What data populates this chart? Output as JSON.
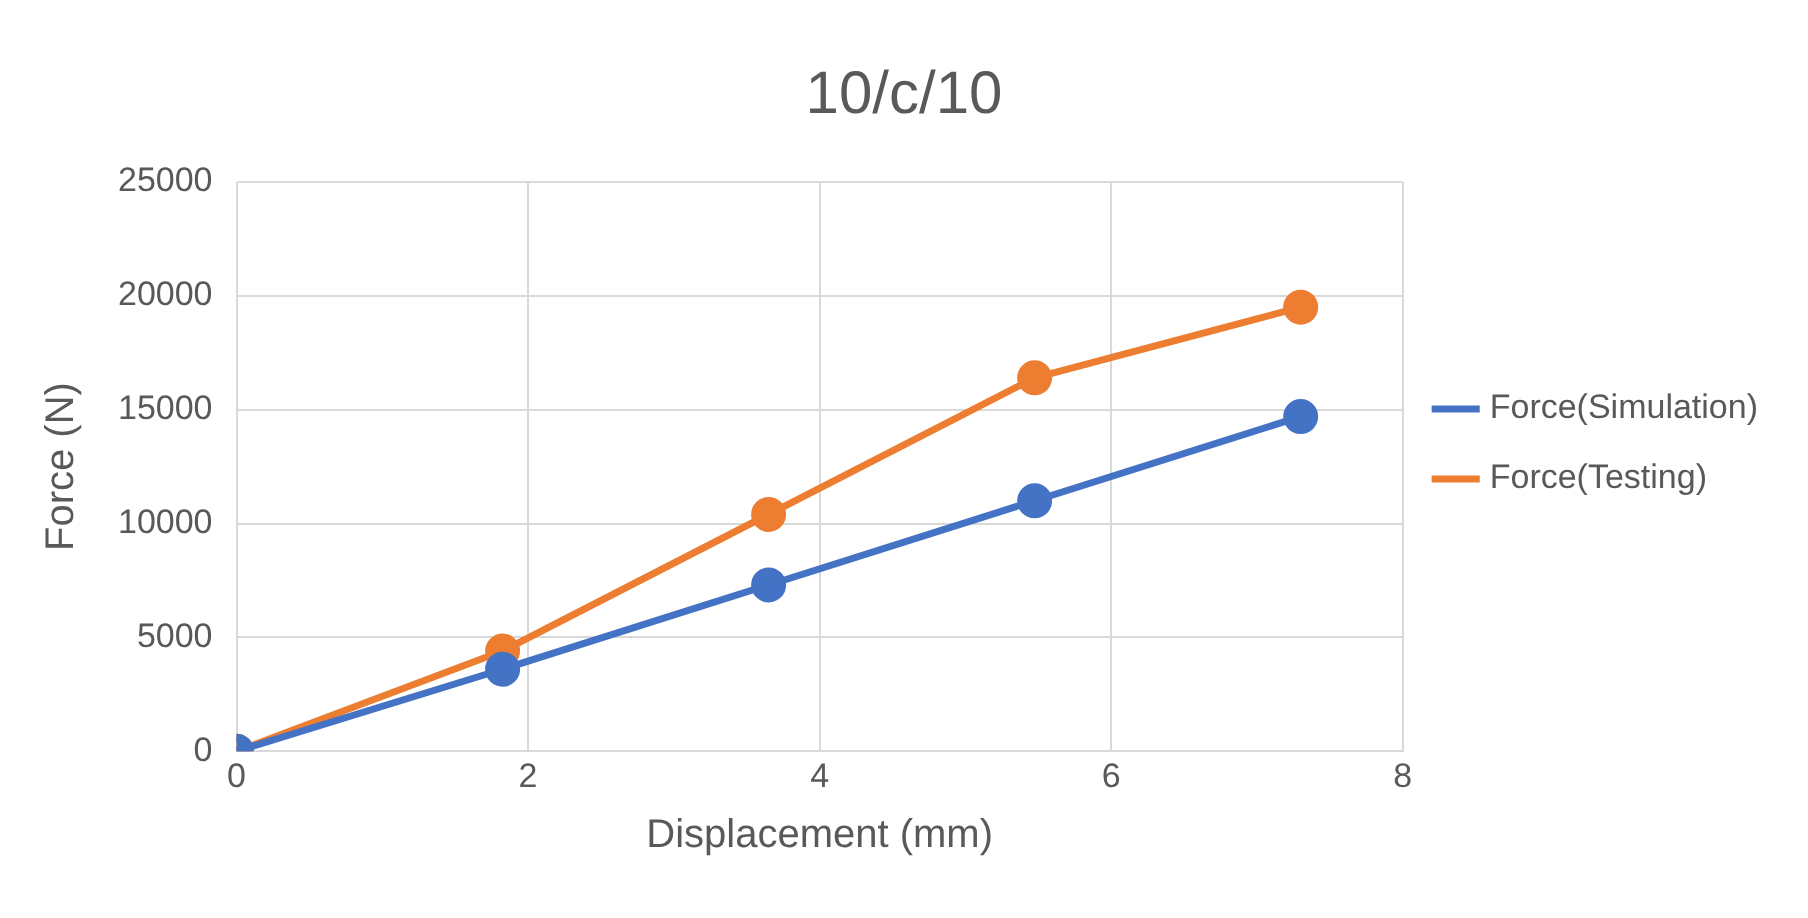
{
  "chart_data": {
    "type": "line",
    "title": "10/c/10",
    "xlabel": "Displacement (mm)",
    "ylabel": "Force (N)",
    "series": [
      {
        "name": "Force(Simulation)",
        "color": "#4472c4",
        "x": [
          0,
          1.825,
          3.65,
          5.475,
          7.3
        ],
        "values": [
          0,
          3600,
          7300,
          11000,
          14700
        ]
      },
      {
        "name": "Force(Testing)",
        "color": "#ed7d31",
        "x": [
          0,
          1.825,
          3.65,
          5.475,
          7.3
        ],
        "values": [
          0,
          4400,
          10400,
          16400,
          19500
        ]
      }
    ],
    "xlim": [
      0,
      8
    ],
    "xticks": [
      0,
      2,
      4,
      6,
      8
    ],
    "ylim": [
      0,
      25000
    ],
    "yticks": [
      0,
      5000,
      10000,
      15000,
      20000,
      25000
    ],
    "grid": true,
    "legend": "right",
    "marker": "circle",
    "line_style": "solid"
  }
}
